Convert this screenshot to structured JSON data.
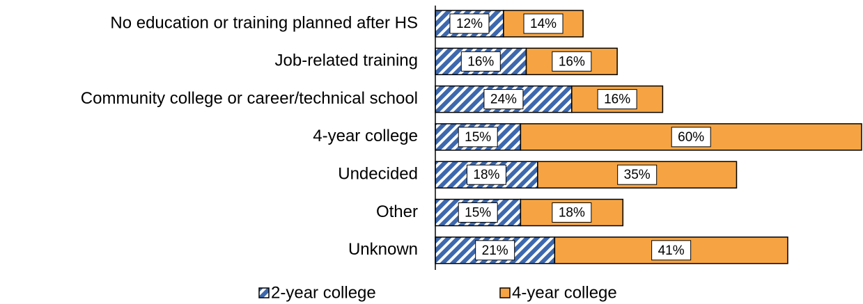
{
  "chart_data": {
    "type": "stacked_barh",
    "categories": [
      "No education or training planned after HS",
      "Job-related training",
      "Community college or career/technical school",
      "4-year college",
      "Undecided",
      "Other",
      "Unknown"
    ],
    "series": [
      {
        "name": "2-year college",
        "color": "#3d68ad",
        "pattern": "hatch",
        "values": [
          12,
          16,
          24,
          15,
          18,
          15,
          21
        ],
        "value_labels": [
          "12%",
          "16%",
          "24%",
          "15%",
          "18%",
          "15%",
          "21%"
        ]
      },
      {
        "name": "4-year college",
        "color": "#f6a443",
        "values": [
          14,
          16,
          16,
          60,
          35,
          18,
          41
        ],
        "value_labels": [
          "14%",
          "16%",
          "16%",
          "60%",
          "35%",
          "18%",
          "41%"
        ]
      }
    ],
    "legend": "bottom"
  }
}
